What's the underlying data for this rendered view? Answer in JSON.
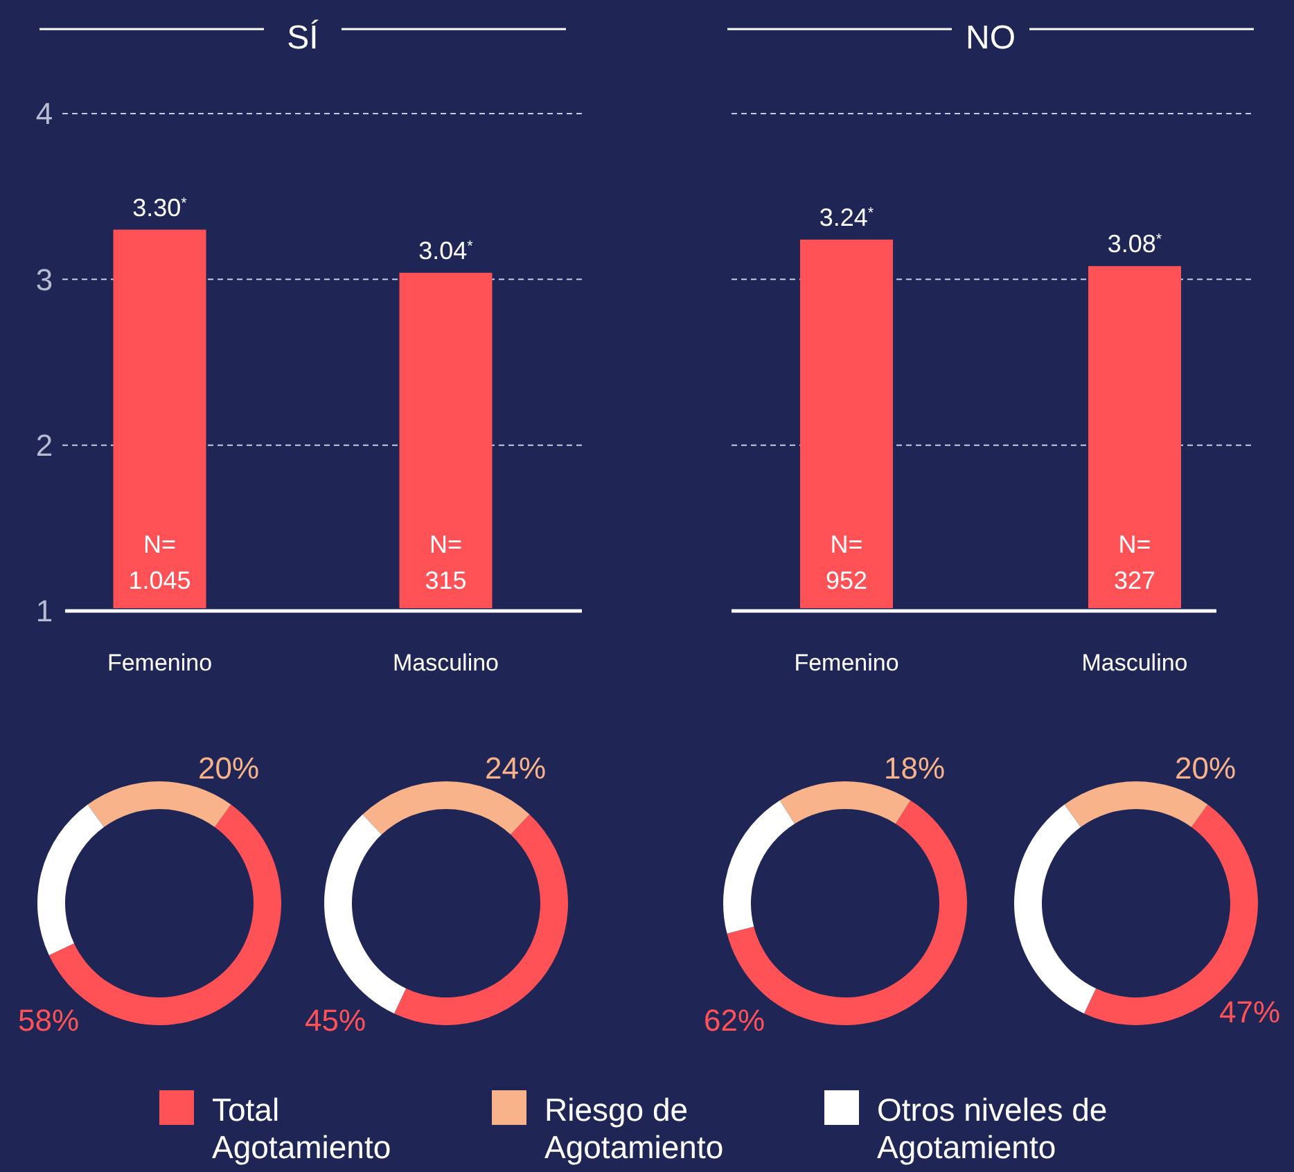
{
  "chart_data": [
    {
      "type": "bar",
      "title": "SÍ",
      "categories": [
        "Femenino",
        "Masculino"
      ],
      "values": [
        3.3,
        3.04
      ],
      "color": "#ff5257",
      "value_labels": [
        "3.30$^{*}$",
        "3.04$^{*}$"
      ],
      "ylim": [
        1,
        4
      ],
      "yticks": [
        1,
        2,
        3,
        4
      ],
      "grid": "y",
      "annotations": [
        "N=\n1.045",
        "N=\n315"
      ]
    },
    {
      "type": "bar",
      "title": "NO",
      "categories": [
        "Femenino",
        "Masculino"
      ],
      "values": [
        3.24,
        3.08
      ],
      "color": "#ff5257",
      "value_labels": [
        "3.24$^{*}$",
        "3.08$^{*}$"
      ],
      "ylim": [
        1,
        4
      ],
      "yticks": [
        1,
        2,
        3,
        4
      ],
      "grid": "y",
      "tick_labels": "x",
      "annotations": [
        "N=\n952",
        "N=\n327"
      ]
    },
    {
      "type": "donut",
      "categories": [
        "Total Agotamiento",
        "Riesgo de Agotamiento",
        "Otros niveles de Agotamiento"
      ],
      "values": [
        58,
        20,
        22
      ],
      "colors": [
        "#ff5257",
        "#f8b38a",
        "#ffffff"
      ],
      "value_labels": [
        "58%",
        "20%",
        null
      ],
      "legend": "bottom"
    },
    {
      "type": "donut",
      "categories": [
        null,
        null,
        null
      ],
      "values": [
        45,
        24,
        31
      ],
      "colors": [
        "#ff5257",
        "#f8b38a",
        "#ffffff"
      ],
      "value_labels": [
        "45%",
        "24%",
        null
      ]
    },
    {
      "type": "donut",
      "categories": [
        null,
        null,
        null
      ],
      "values": [
        62,
        18,
        20
      ],
      "colors": [
        "#ff5257",
        "#f8b38a",
        "#ffffff"
      ],
      "value_labels": [
        "62%",
        "18%",
        null
      ]
    },
    {
      "type": "donut",
      "categories": [
        null,
        null,
        null
      ],
      "values": [
        47,
        20,
        33
      ],
      "colors": [
        "#ff5257",
        "#f8b38a",
        "#ffffff"
      ],
      "value_labels": [
        "47%",
        "20%",
        null
      ]
    }
  ]
}
